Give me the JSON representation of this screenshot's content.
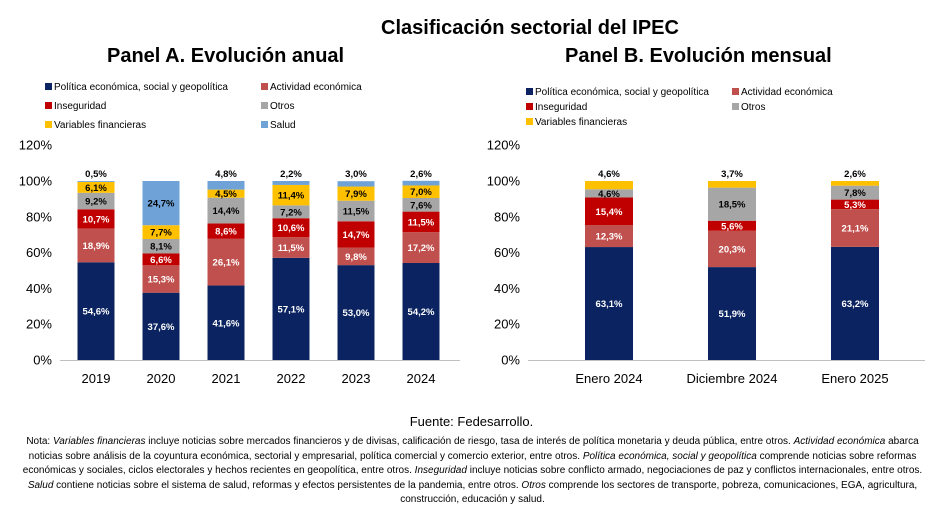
{
  "title": "Clasificación sectorial del IPEC",
  "colors": {
    "politica": "#0b2461",
    "actividad": "#c0504d",
    "inseguridad": "#c00000",
    "otros": "#a6a6a6",
    "financieras": "#ffc000",
    "salud": "#6fa3d8"
  },
  "chart_data": [
    {
      "type": "bar",
      "stacked": true,
      "title": "Panel A. Evolución anual",
      "categories": [
        "2019",
        "2020",
        "2021",
        "2022",
        "2023",
        "2024"
      ],
      "ylim": [
        0,
        120
      ],
      "yticks": [
        "0%",
        "20%",
        "40%",
        "60%",
        "80%",
        "100%",
        "120%"
      ],
      "legend": [
        "Política económica, social y geopolítica",
        "Actividad económica",
        "Inseguridad",
        "Otros",
        "Variables financieras",
        "Salud"
      ],
      "series": [
        {
          "name": "Política económica, social y geopolítica",
          "key": "politica",
          "values": [
            54.6,
            37.6,
            41.6,
            57.1,
            53.0,
            54.2
          ],
          "labels": [
            "54,6%",
            "37,6%",
            "41,6%",
            "57,1%",
            "53,0%",
            "54,2%"
          ]
        },
        {
          "name": "Actividad económica",
          "key": "actividad",
          "values": [
            18.9,
            15.3,
            26.1,
            11.5,
            9.8,
            17.2
          ],
          "labels": [
            "18,9%",
            "15,3%",
            "26,1%",
            "11,5%",
            "9,8%",
            "17,2%"
          ]
        },
        {
          "name": "Inseguridad",
          "key": "inseguridad",
          "values": [
            10.7,
            6.6,
            8.6,
            10.6,
            14.7,
            11.5
          ],
          "labels": [
            "10,7%",
            "6,6%",
            "8,6%",
            "10,6%",
            "14,7%",
            "11,5%"
          ]
        },
        {
          "name": "Otros",
          "key": "otros",
          "values": [
            9.2,
            8.1,
            14.4,
            7.2,
            11.5,
            7.6
          ],
          "labels": [
            "9,2%",
            "8,1%",
            "14,4%",
            "7,2%",
            "11,5%",
            "7,6%"
          ]
        },
        {
          "name": "Variables financieras",
          "key": "financieras",
          "values": [
            6.1,
            7.7,
            4.5,
            11.4,
            7.9,
            7.0
          ],
          "labels": [
            "6,1%",
            "7,7%",
            "4,5%",
            "11,4%",
            "7,9%",
            "7,0%"
          ]
        },
        {
          "name": "Salud",
          "key": "salud",
          "values": [
            0.5,
            24.7,
            4.8,
            2.2,
            3.0,
            2.6
          ],
          "labels": [
            "0,5%",
            "24,7%",
            "4,8%",
            "2,2%",
            "3,0%",
            "2,6%"
          ]
        }
      ]
    },
    {
      "type": "bar",
      "stacked": true,
      "title": "Panel B. Evolución mensual",
      "categories": [
        "Enero 2024",
        "Diciembre 2024",
        "Enero 2025"
      ],
      "ylim": [
        0,
        120
      ],
      "yticks": [
        "0%",
        "20%",
        "40%",
        "60%",
        "80%",
        "100%",
        "120%"
      ],
      "legend": [
        "Política económica, social y geopolítica",
        "Actividad económica",
        "Inseguridad",
        "Otros",
        "Variables financieras"
      ],
      "series": [
        {
          "name": "Política económica, social y geopolítica",
          "key": "politica",
          "values": [
            63.1,
            51.9,
            63.2
          ],
          "labels": [
            "63,1%",
            "51,9%",
            "63,2%"
          ]
        },
        {
          "name": "Actividad económica",
          "key": "actividad",
          "values": [
            12.3,
            20.3,
            21.1
          ],
          "labels": [
            "12,3%",
            "20,3%",
            "21,1%"
          ]
        },
        {
          "name": "Inseguridad",
          "key": "inseguridad",
          "values": [
            15.4,
            5.6,
            5.3
          ],
          "labels": [
            "15,4%",
            "5,6%",
            "5,3%"
          ]
        },
        {
          "name": "Otros",
          "key": "otros",
          "values": [
            4.6,
            18.5,
            7.8
          ],
          "labels": [
            "4,6%",
            "18,5%",
            "7,8%"
          ]
        },
        {
          "name": "Variables financieras",
          "key": "financieras",
          "values": [
            4.6,
            3.7,
            2.6
          ],
          "labels": [
            "4,6%",
            "3,7%",
            "2,6%"
          ]
        }
      ]
    }
  ],
  "source": "Fuente: Fedesarrollo.",
  "note": [
    {
      "text": "Nota: ",
      "italic": false
    },
    {
      "text": "Variables financieras",
      "italic": true
    },
    {
      "text": " incluye noticias sobre mercados financieros y de divisas, calificación de riesgo, tasa de interés de política monetaria y deuda pública, entre otros. ",
      "italic": false
    },
    {
      "text": "Actividad económica",
      "italic": true
    },
    {
      "text": " abarca noticias sobre análisis de la coyuntura económica, sectorial y empresarial, política comercial y comercio exterior, entre otros. ",
      "italic": false
    },
    {
      "text": "Política económica, social y geopolítica",
      "italic": true
    },
    {
      "text": " comprende noticias sobre reformas económicas y sociales, ciclos electorales y hechos recientes en geopolítica, entre otros. ",
      "italic": false
    },
    {
      "text": "Inseguridad",
      "italic": true
    },
    {
      "text": " incluye noticias sobre conflicto armado, negociaciones de paz y conflictos internacionales, entre otros. ",
      "italic": false
    },
    {
      "text": "Salud",
      "italic": true
    },
    {
      "text": " contiene noticias sobre el sistema de salud, reformas y efectos persistentes de la pandemia, entre otros. ",
      "italic": false
    },
    {
      "text": "Otros",
      "italic": true
    },
    {
      "text": " comprende los sectores de transporte, pobreza, comunicaciones, EGA, agricultura, construcción, educación y salud.",
      "italic": false
    }
  ]
}
